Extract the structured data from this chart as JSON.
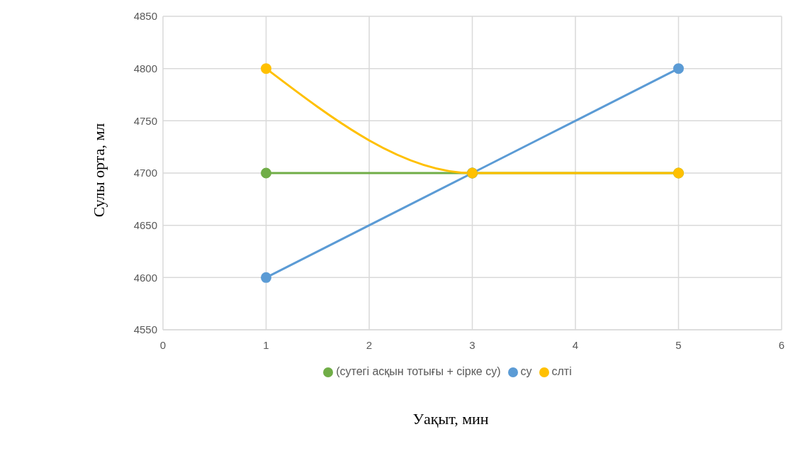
{
  "chart_data": {
    "type": "line",
    "xlabel": "Уақыт, мин",
    "ylabel": "Сулы орта, мл",
    "x": [
      1,
      3,
      5
    ],
    "series": [
      {
        "name": "(сутегі асқын тотығы + сірке су)",
        "color": "#70ad47",
        "values": [
          4700,
          4700,
          4700
        ]
      },
      {
        "name": "су",
        "color": "#5b9bd5",
        "values": [
          4600,
          4700,
          4800
        ]
      },
      {
        "name": "слті",
        "color": "#ffc000",
        "values": [
          4800,
          4700,
          4700
        ]
      }
    ],
    "xlim": [
      0,
      6
    ],
    "xticks": [
      0,
      1,
      2,
      3,
      4,
      5,
      6
    ],
    "ylim": [
      4550,
      4850
    ],
    "yticks": [
      4550,
      4600,
      4650,
      4700,
      4750,
      4800,
      4850
    ],
    "grid": true,
    "legend": "bottom",
    "marker": "circle",
    "line_style": "solid"
  }
}
